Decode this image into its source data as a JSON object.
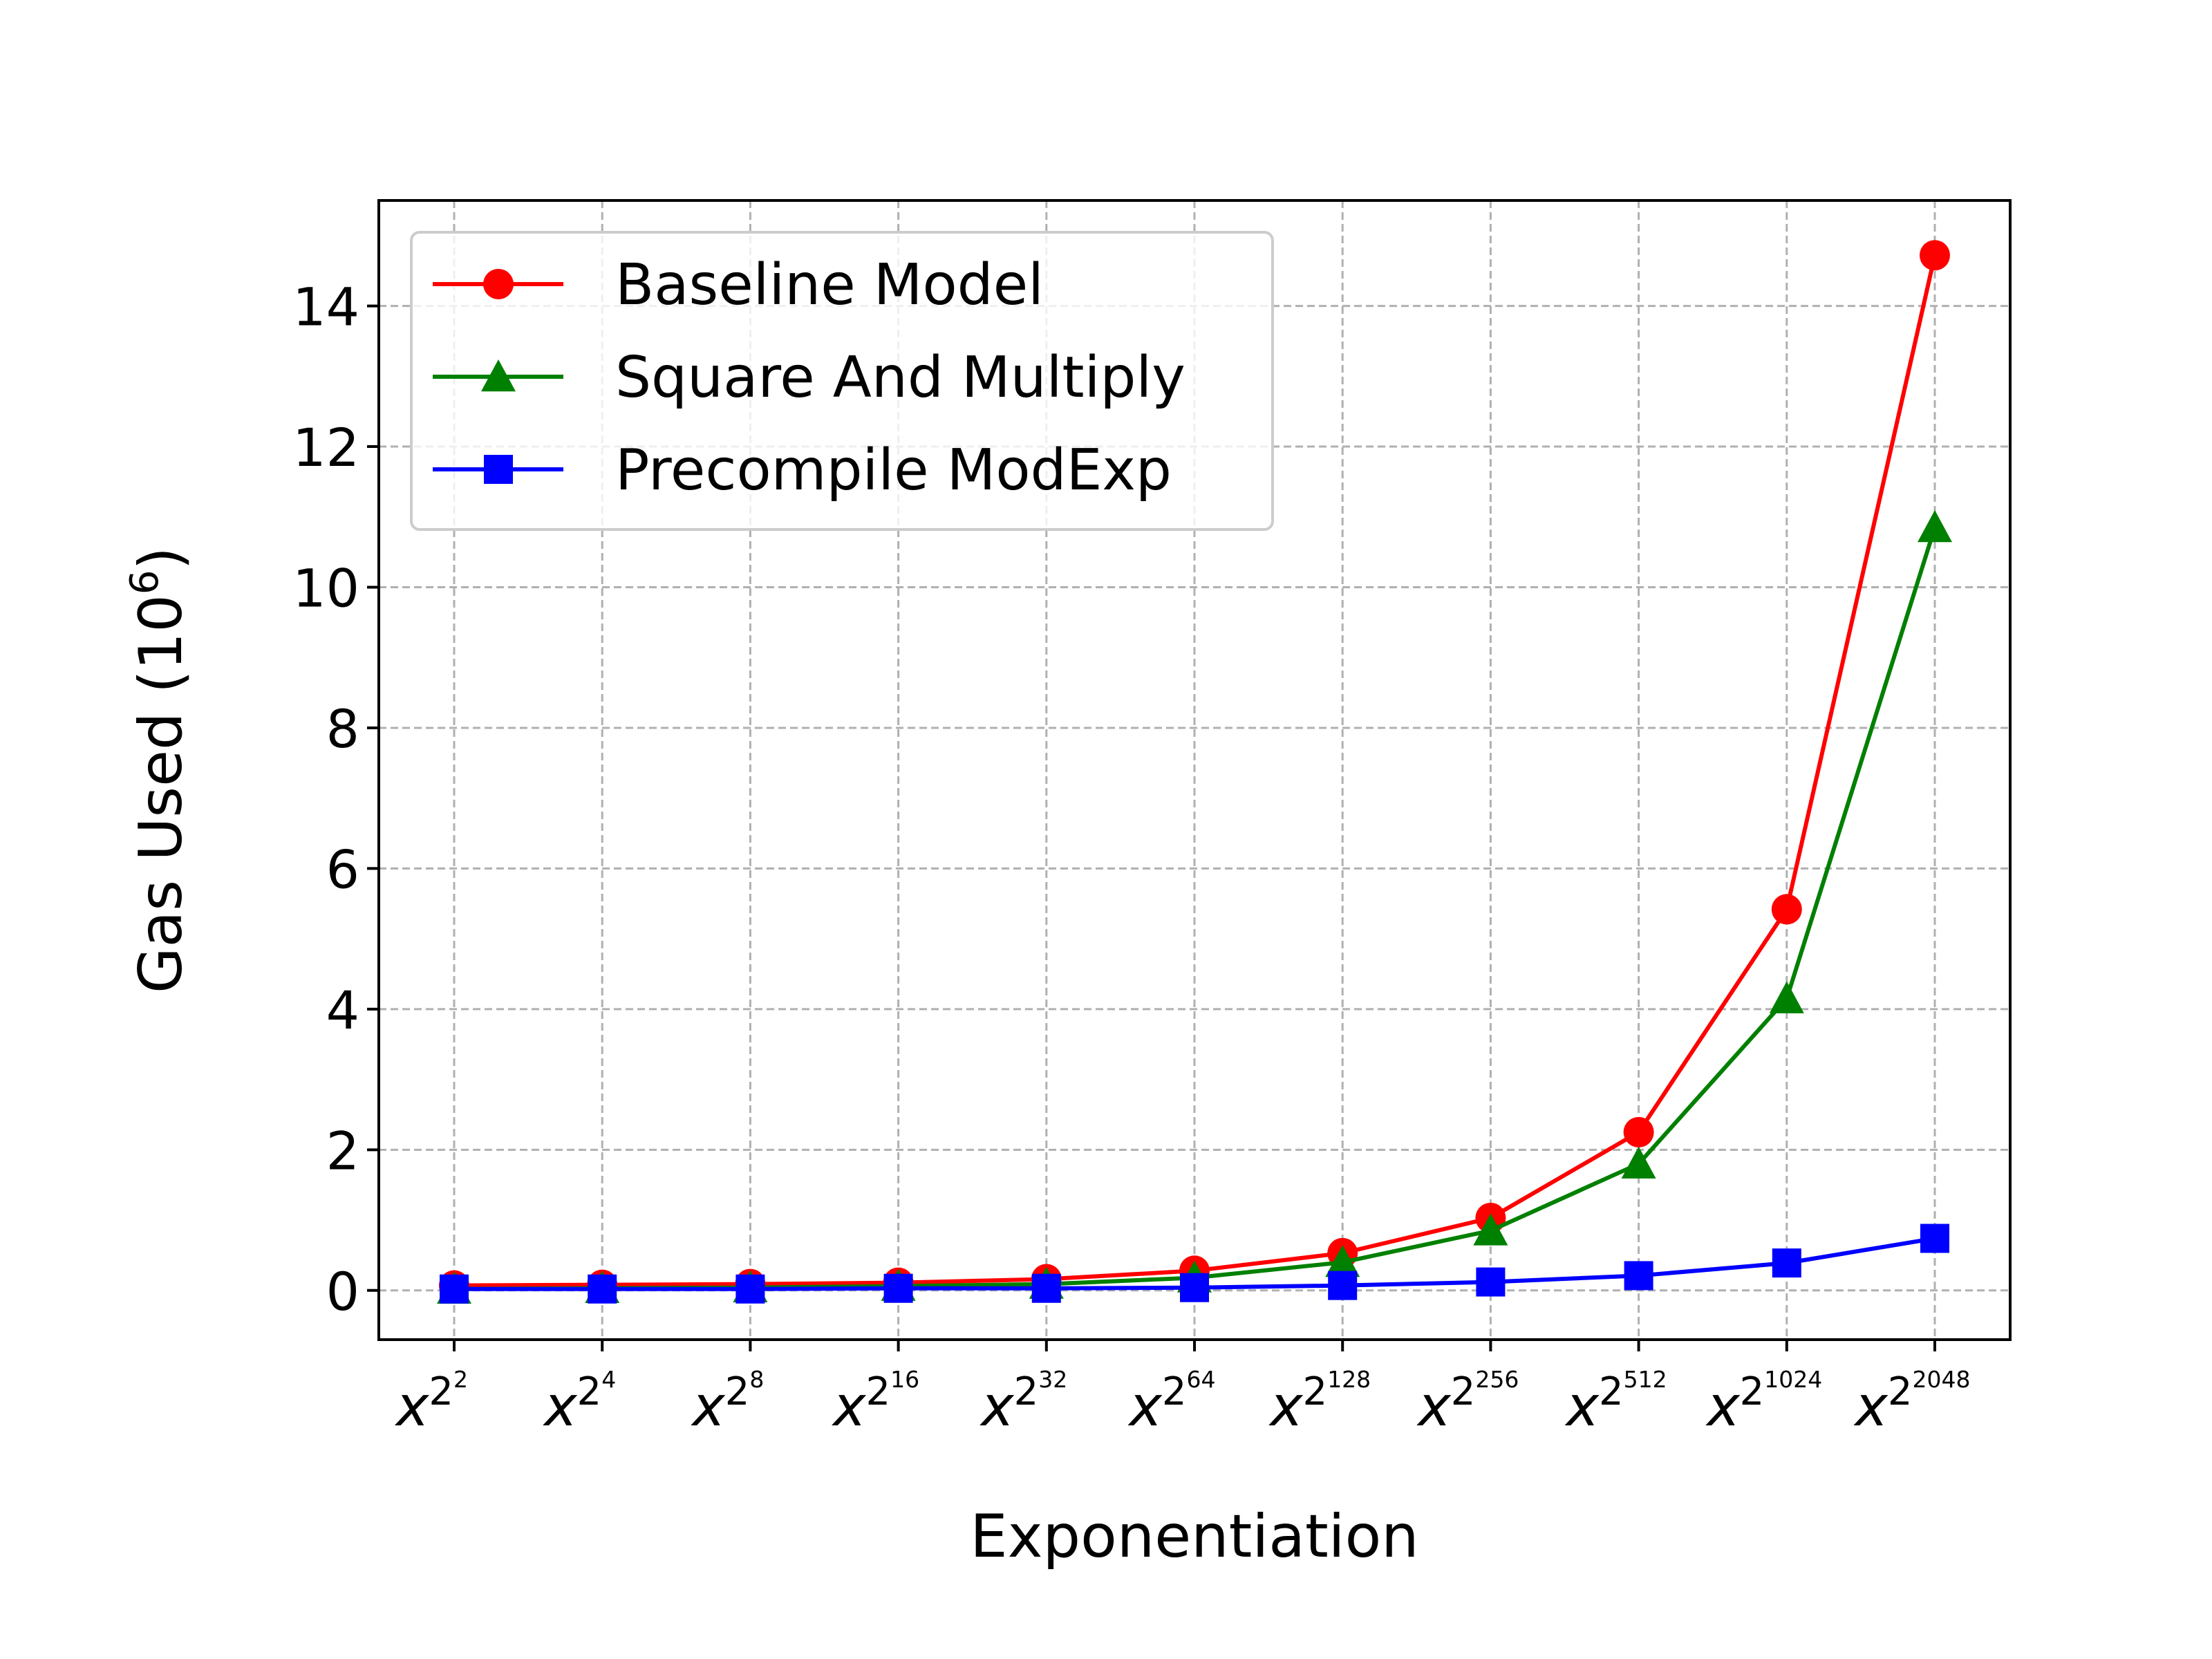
{
  "chart_data": {
    "type": "line",
    "title": "",
    "xlabel": "Exponentiation",
    "ylabel_base": "Gas Used (10",
    "ylabel_exp": "6",
    "ylabel_close": ")",
    "x_tick_base": "x",
    "x_tick_inner": "2",
    "categories": [
      "2",
      "4",
      "8",
      "16",
      "32",
      "64",
      "128",
      "256",
      "512",
      "1024",
      "2048"
    ],
    "ylim": [
      -0.7,
      15.5
    ],
    "yticks": [
      0,
      2,
      4,
      6,
      8,
      10,
      12,
      14
    ],
    "grid": true,
    "grid_style": "dashed",
    "legend_position": "upper-left",
    "series": [
      {
        "name": "Baseline Model",
        "color": "#ff0000",
        "marker": "circle",
        "values": [
          0.07,
          0.08,
          0.09,
          0.11,
          0.16,
          0.28,
          0.53,
          1.03,
          2.25,
          5.42,
          14.72
        ]
      },
      {
        "name": "Square And Multiply",
        "color": "#008000",
        "marker": "triangle",
        "values": [
          0.02,
          0.03,
          0.04,
          0.06,
          0.09,
          0.18,
          0.4,
          0.85,
          1.8,
          4.15,
          10.85
        ]
      },
      {
        "name": "Precompile ModExp",
        "color": "#0000ff",
        "marker": "square",
        "values": [
          0.02,
          0.02,
          0.02,
          0.03,
          0.03,
          0.04,
          0.07,
          0.12,
          0.21,
          0.39,
          0.74
        ]
      }
    ]
  }
}
